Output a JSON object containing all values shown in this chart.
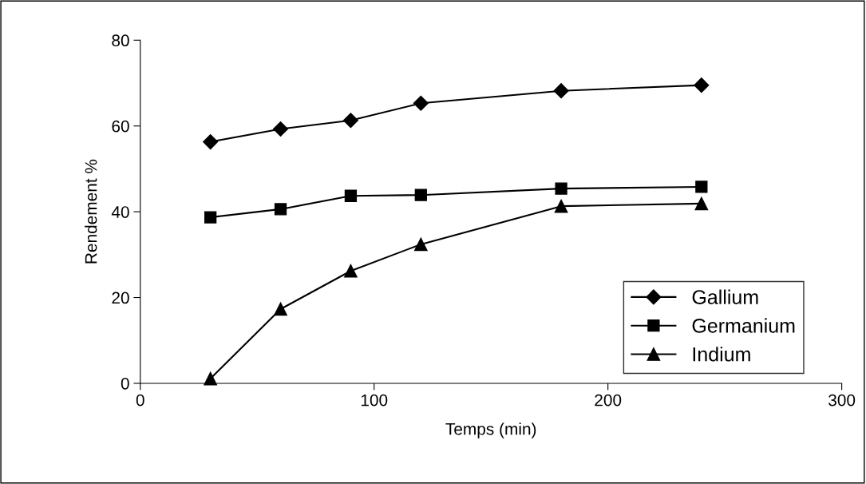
{
  "chart_data": {
    "type": "line",
    "xlabel": "Temps (min)",
    "ylabel": "Rendement %",
    "x": [
      30,
      60,
      90,
      120,
      180,
      240
    ],
    "series": [
      {
        "name": "Gallium",
        "color": "#000000",
        "marker": "diamond",
        "values": [
          56.3,
          59.3,
          61.3,
          65.3,
          68.2,
          69.5
        ]
      },
      {
        "name": "Germanium",
        "color": "#000000",
        "marker": "square",
        "values": [
          38.7,
          40.6,
          43.7,
          43.9,
          45.4,
          45.8
        ]
      },
      {
        "name": "Indium",
        "color": "#000000",
        "marker": "triangle",
        "values": [
          1.1,
          17.3,
          26.2,
          32.4,
          41.3,
          41.9
        ]
      }
    ],
    "xlim": [
      0,
      300
    ],
    "xticks": [
      0,
      100,
      200,
      300
    ],
    "ylim": [
      0,
      80
    ],
    "yticks": [
      0,
      20,
      40,
      60,
      80
    ],
    "grid": false,
    "legend": "bottom right",
    "line_style": "solid"
  }
}
